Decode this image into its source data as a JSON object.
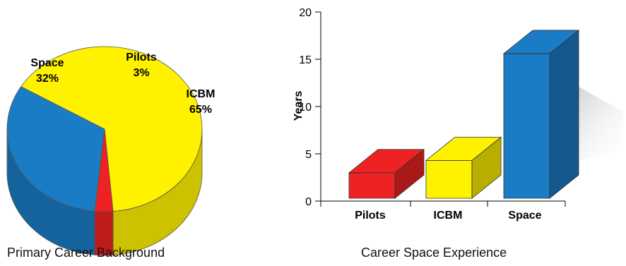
{
  "chart_data": [
    {
      "type": "pie",
      "title": "Primary Career Background",
      "slices": [
        {
          "label": "ICBM",
          "value": 65,
          "value_label": "65%",
          "color": "#fff200"
        },
        {
          "label": "Pilots",
          "value": 3,
          "value_label": "3%",
          "color": "#ee2222"
        },
        {
          "label": "Space",
          "value": 32,
          "value_label": "32%",
          "color": "#1a7cc4"
        }
      ],
      "style": "3d"
    },
    {
      "type": "bar",
      "title": "Career Space Experience",
      "categories": [
        "Pilots",
        "ICBM",
        "Space"
      ],
      "values": [
        3,
        4.3,
        15.6
      ],
      "colors": [
        "#ee2222",
        "#fff200",
        "#1a7cc4"
      ],
      "ylabel": "Years",
      "xlabel": "",
      "ylim": [
        0,
        20
      ],
      "yticks": [
        "0",
        "5",
        "10",
        "15",
        "20"
      ],
      "style": "3d",
      "grid": false
    }
  ]
}
